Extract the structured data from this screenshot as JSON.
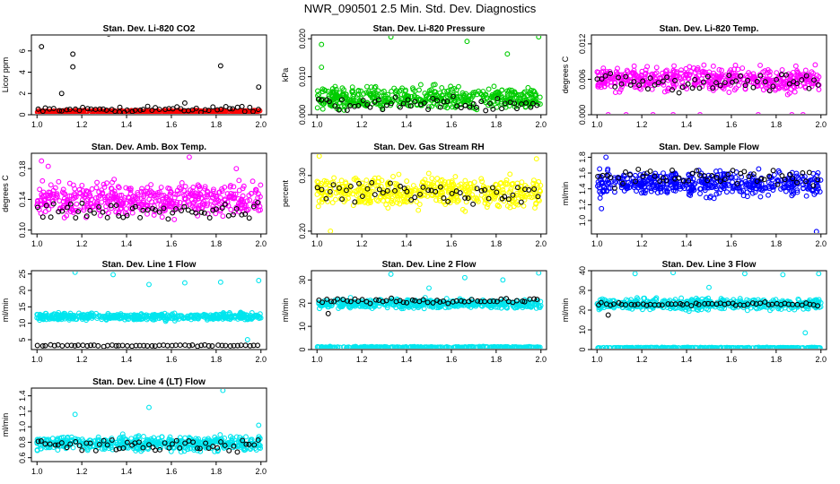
{
  "page": {
    "title": "NWR_090501  2.5 Min. Std. Dev. Diagnostics"
  },
  "colors": {
    "black": "#000000",
    "red": "#ff0000",
    "green": "#00cc00",
    "magenta": "#ff00ff",
    "yellow": "#ffff00",
    "blue": "#0000ff",
    "cyan": "#00e5ee"
  },
  "chart_data": [
    {
      "type": "scatter",
      "title": "Stan. Dev. Li-820 CO2",
      "xlabel": "",
      "ylabel": "Licor ppm",
      "xlim": [
        1.0,
        2.0
      ],
      "ylim": [
        0,
        7.5
      ],
      "xticks": [
        "1.0",
        "1.2",
        "1.4",
        "1.6",
        "1.8",
        "2.0"
      ],
      "yticks": [
        "0",
        "2",
        "4",
        "6"
      ],
      "ytick_values": [
        0,
        2,
        4,
        6
      ],
      "series": [
        {
          "name": "main",
          "color": "red",
          "band": [
            0.15,
            0.45
          ],
          "outliers": []
        },
        {
          "name": "black",
          "color": "black",
          "band": [
            0.1,
            0.9
          ],
          "outliers": [
            [
              1.02,
              6.4
            ],
            [
              1.11,
              2.0
            ],
            [
              1.16,
              5.7
            ],
            [
              1.16,
              4.5
            ],
            [
              1.32,
              7.6
            ],
            [
              1.82,
              4.6
            ],
            [
              1.99,
              2.6
            ],
            [
              1.66,
              1.1
            ],
            [
              1.37,
              0.7
            ]
          ]
        }
      ]
    },
    {
      "type": "scatter",
      "title": "Stan. Dev. Li-820 Pressure",
      "xlabel": "",
      "ylabel": "kPa",
      "xlim": [
        1.0,
        2.0
      ],
      "ylim": [
        0,
        0.021
      ],
      "xticks": [
        "1.0",
        "1.2",
        "1.4",
        "1.6",
        "1.8",
        "2.0"
      ],
      "yticks": [
        "0.000",
        "0.010",
        "0.020"
      ],
      "ytick_values": [
        0,
        0.01,
        0.02
      ],
      "series": [
        {
          "name": "main",
          "color": "green",
          "band": [
            0.0,
            0.0085
          ],
          "outliers": [
            [
              1.02,
              0.0185
            ],
            [
              1.33,
              0.0205
            ],
            [
              1.67,
              0.0193
            ],
            [
              1.85,
              0.016
            ],
            [
              1.99,
              0.0205
            ],
            [
              1.02,
              0.0125
            ]
          ]
        },
        {
          "name": "black",
          "color": "black",
          "band": [
            0.0,
            0.006
          ],
          "outliers": []
        }
      ]
    },
    {
      "type": "scatter",
      "title": "Stan. Dev. Li-820 Temp.",
      "xlabel": "",
      "ylabel": "degrees C",
      "xlim": [
        1.0,
        2.0
      ],
      "ylim": [
        0,
        0.0135
      ],
      "xticks": [
        "1.0",
        "1.2",
        "1.4",
        "1.6",
        "1.8",
        "2.0"
      ],
      "yticks": [
        "0.000",
        "0.006",
        "0.012"
      ],
      "ytick_values": [
        0,
        0.006,
        0.012
      ],
      "series": [
        {
          "name": "main",
          "color": "magenta",
          "band": [
            0.003,
            0.009
          ],
          "outliers": [
            [
              1.05,
              0.0
            ],
            [
              1.13,
              0.0
            ],
            [
              1.25,
              0.0
            ],
            [
              1.34,
              0.0
            ],
            [
              1.46,
              0.0
            ],
            [
              1.72,
              0.0
            ],
            [
              1.87,
              0.0
            ],
            [
              1.92,
              0.0
            ]
          ]
        },
        {
          "name": "black",
          "color": "black",
          "band": [
            0.003,
            0.008
          ],
          "outliers": []
        }
      ]
    },
    {
      "type": "scatter",
      "title": "Stan. Dev. Amb. Box Temp.",
      "xlabel": "",
      "ylabel": "degrees C",
      "xlim": [
        1.0,
        2.0
      ],
      "ylim": [
        0.095,
        0.2
      ],
      "xticks": [
        "1.0",
        "1.2",
        "1.4",
        "1.6",
        "1.8",
        "2.0"
      ],
      "yticks": [
        "0.10",
        "0.14",
        "0.18"
      ],
      "ytick_values": [
        0.1,
        0.14,
        0.18
      ],
      "series": [
        {
          "name": "main",
          "color": "magenta",
          "band": [
            0.11,
            0.17
          ],
          "outliers": [
            [
              1.02,
              0.19
            ],
            [
              1.68,
              0.195
            ],
            [
              1.05,
              0.183
            ],
            [
              1.89,
              0.18
            ]
          ]
        },
        {
          "name": "black",
          "color": "black",
          "band": [
            0.11,
            0.14
          ],
          "outliers": []
        }
      ]
    },
    {
      "type": "scatter",
      "title": "Stan. Dev. Gas Stream RH",
      "xlabel": "",
      "ylabel": "percent",
      "xlim": [
        1.0,
        2.0
      ],
      "ylim": [
        0.195,
        0.34
      ],
      "xticks": [
        "1.0",
        "1.2",
        "1.4",
        "1.6",
        "1.8",
        "2.0"
      ],
      "yticks": [
        "0.20",
        "0.30"
      ],
      "ytick_values": [
        0.2,
        0.3
      ],
      "series": [
        {
          "name": "main",
          "color": "yellow",
          "band": [
            0.23,
            0.31
          ],
          "outliers": [
            [
              1.01,
              0.335
            ],
            [
              1.98,
              0.33
            ],
            [
              1.06,
              0.2
            ]
          ]
        },
        {
          "name": "black",
          "color": "black",
          "band": [
            0.24,
            0.3
          ],
          "outliers": []
        }
      ]
    },
    {
      "type": "scatter",
      "title": "Stan. Dev. Sample Flow",
      "xlabel": "",
      "ylabel": "ml/min",
      "xlim": [
        1.0,
        2.0
      ],
      "ylim": [
        0.83,
        1.85
      ],
      "xticks": [
        "1.0",
        "1.2",
        "1.4",
        "1.6",
        "1.8",
        "2.0"
      ],
      "yticks": [
        "1.0",
        "1.2",
        "1.4",
        "1.6",
        "1.8"
      ],
      "ytick_values": [
        1.0,
        1.2,
        1.4,
        1.6,
        1.8
      ],
      "series": [
        {
          "name": "main",
          "color": "blue",
          "band": [
            1.25,
            1.68
          ],
          "outliers": [
            [
              1.04,
              1.8
            ],
            [
              1.98,
              0.86
            ],
            [
              1.02,
              1.15
            ]
          ]
        },
        {
          "name": "black",
          "color": "black",
          "band": [
            1.4,
            1.7
          ],
          "outliers": []
        }
      ]
    },
    {
      "type": "scatter",
      "title": "Stan. Dev. Line 1 Flow",
      "xlabel": "",
      "ylabel": "ml/min",
      "xlim": [
        1.0,
        2.0
      ],
      "ylim": [
        2,
        26
      ],
      "xticks": [
        "1.0",
        "1.2",
        "1.4",
        "1.6",
        "1.8",
        "2.0"
      ],
      "yticks": [
        "5",
        "10",
        "15",
        "20",
        "25"
      ],
      "ytick_values": [
        5,
        10,
        15,
        20,
        25
      ],
      "series": [
        {
          "name": "main",
          "color": "cyan",
          "band": [
            10.5,
            13.5
          ],
          "outliers": [
            [
              1.17,
              25.5
            ],
            [
              1.34,
              24.8
            ],
            [
              1.5,
              21.8
            ],
            [
              1.66,
              22.3
            ],
            [
              1.82,
              22.5
            ],
            [
              1.99,
              23
            ],
            [
              1.94,
              5
            ]
          ]
        },
        {
          "name": "black",
          "color": "black",
          "band": [
            2.8,
            3.6
          ],
          "outliers": []
        }
      ]
    },
    {
      "type": "scatter",
      "title": "Stan. Dev. Line 2 Flow",
      "xlabel": "",
      "ylabel": "ml/min",
      "xlim": [
        1.0,
        2.0
      ],
      "ylim": [
        0,
        34
      ],
      "xticks": [
        "1.0",
        "1.2",
        "1.4",
        "1.6",
        "1.8",
        "2.0"
      ],
      "yticks": [
        "0",
        "10",
        "20",
        "30"
      ],
      "ytick_values": [
        0,
        10,
        20,
        30
      ],
      "series": [
        {
          "name": "main",
          "color": "cyan",
          "band": [
            17,
            22.5
          ],
          "outliers": [
            [
              1.33,
              32.5
            ],
            [
              1.5,
              26.5
            ],
            [
              1.66,
              31
            ],
            [
              1.83,
              30
            ],
            [
              1.99,
              33
            ]
          ]
        },
        {
          "name": "flat",
          "color": "cyan",
          "band": [
            0.6,
            1.4
          ],
          "outliers": []
        },
        {
          "name": "black",
          "color": "black",
          "band": [
            19.5,
            22.5
          ],
          "outliers": [
            [
              1.05,
              15.5
            ]
          ]
        }
      ]
    },
    {
      "type": "scatter",
      "title": "Stan. Dev. Line 3 Flow",
      "xlabel": "",
      "ylabel": "ml/min",
      "xlim": [
        1.0,
        2.0
      ],
      "ylim": [
        0,
        40
      ],
      "xticks": [
        "1.0",
        "1.2",
        "1.4",
        "1.6",
        "1.8",
        "2.0"
      ],
      "yticks": [
        "0",
        "10",
        "20",
        "30",
        "40"
      ],
      "ytick_values": [
        0,
        10,
        20,
        30,
        40
      ],
      "series": [
        {
          "name": "main",
          "color": "cyan",
          "band": [
            19,
            27
          ],
          "outliers": [
            [
              1.17,
              38.5
            ],
            [
              1.34,
              39
            ],
            [
              1.5,
              31.5
            ],
            [
              1.66,
              38.5
            ],
            [
              1.83,
              38
            ],
            [
              1.99,
              38.5
            ],
            [
              1.93,
              8.5
            ]
          ]
        },
        {
          "name": "flat",
          "color": "cyan",
          "band": [
            0.6,
            1.2
          ],
          "outliers": []
        },
        {
          "name": "black",
          "color": "black",
          "band": [
            21.5,
            24.5
          ],
          "outliers": [
            [
              1.05,
              17.5
            ]
          ]
        }
      ]
    },
    {
      "type": "scatter",
      "title": "Stan. Dev. Line 4 (LT) Flow",
      "xlabel": "",
      "ylabel": "ml/min",
      "xlim": [
        1.0,
        2.0
      ],
      "ylim": [
        0.55,
        1.5
      ],
      "xticks": [
        "1.0",
        "1.2",
        "1.4",
        "1.6",
        "1.8",
        "2.0"
      ],
      "yticks": [
        "0.6",
        "0.8",
        "1.0",
        "1.2",
        "1.4"
      ],
      "ytick_values": [
        0.6,
        0.8,
        1.0,
        1.2,
        1.4
      ],
      "series": [
        {
          "name": "main",
          "color": "cyan",
          "band": [
            0.65,
            0.92
          ],
          "outliers": [
            [
              1.17,
              1.16
            ],
            [
              1.5,
              1.25
            ],
            [
              1.83,
              1.47
            ],
            [
              1.99,
              1.02
            ]
          ]
        },
        {
          "name": "black",
          "color": "black",
          "band": [
            0.65,
            0.87
          ],
          "outliers": []
        }
      ]
    }
  ]
}
